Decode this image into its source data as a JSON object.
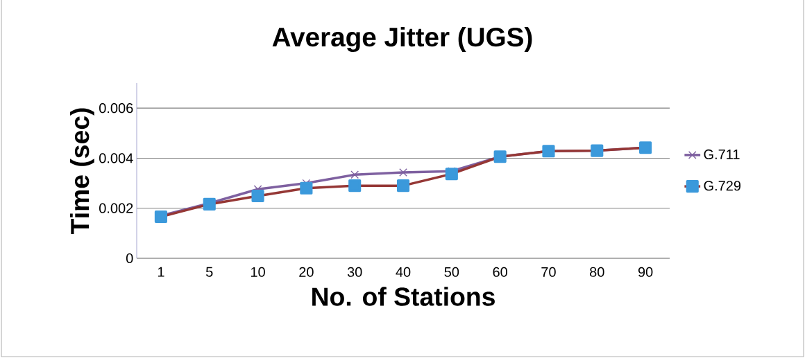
{
  "chart_data": {
    "type": "line",
    "title": "Average Jitter (UGS)",
    "xlabel": "No. of Stations",
    "ylabel": "Time (sec)",
    "categories": [
      "1",
      "5",
      "10",
      "20",
      "30",
      "40",
      "50",
      "60",
      "70",
      "80",
      "90"
    ],
    "series": [
      {
        "name": "G.711",
        "color": "#7e60a0",
        "marker": "cross",
        "values": [
          0.0017,
          0.0022,
          0.00276,
          0.003,
          0.00334,
          0.00343,
          0.00348,
          0.00406,
          0.00428,
          0.0043,
          0.00442
        ]
      },
      {
        "name": "G.729",
        "color": "#953735",
        "marker": "square",
        "values": [
          0.00166,
          0.00216,
          0.00249,
          0.0028,
          0.0029,
          0.0029,
          0.00337,
          0.00406,
          0.00428,
          0.0043,
          0.00442
        ]
      }
    ],
    "ylim": [
      0,
      0.007
    ],
    "yticks": [
      0,
      0.002,
      0.004,
      0.006
    ],
    "grid": "y",
    "legend": "right",
    "line_style": "solid"
  }
}
